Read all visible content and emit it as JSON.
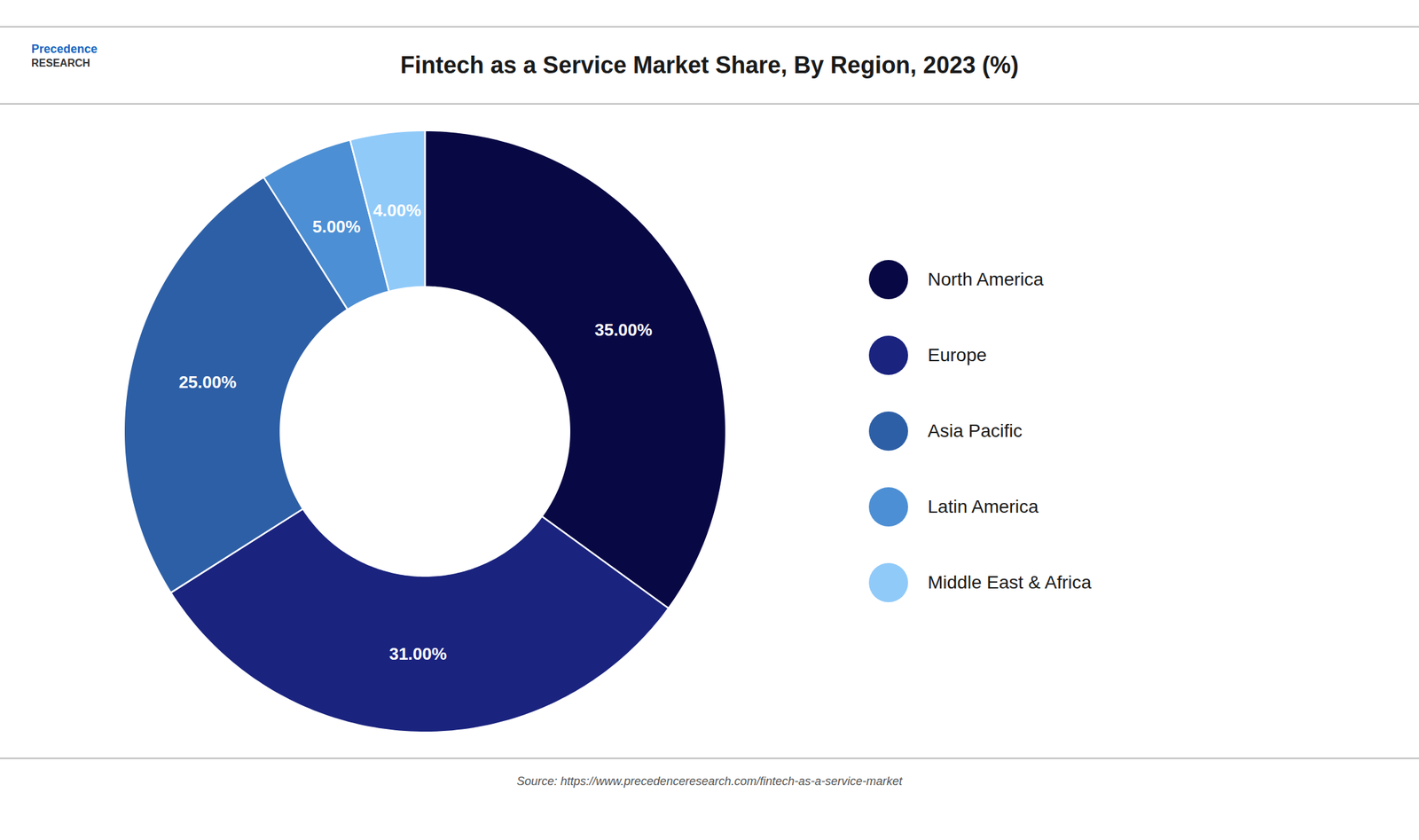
{
  "chart_data": {
    "type": "pie",
    "title": "Fintech as a Service Market Share, By Region, 2023 (%)",
    "categories": [
      "North America",
      "Europe",
      "Asia Pacific",
      "Latin America",
      "Middle East & Africa"
    ],
    "values": [
      35.0,
      31.0,
      25.0,
      5.0,
      4.0
    ],
    "value_labels": [
      "35.00%",
      "31.00%",
      "25.00%",
      "5.00%",
      "4.00%"
    ],
    "colors": [
      "#080845",
      "#1a237e",
      "#2d5fa6",
      "#4d8fd4",
      "#90caf9"
    ],
    "data_labels": true,
    "legend": "right",
    "annotations": [
      "Precedence",
      "RESEARCH",
      "Source: https://www.precedenceresearch.com/fintech-as-a-service-market"
    ]
  }
}
